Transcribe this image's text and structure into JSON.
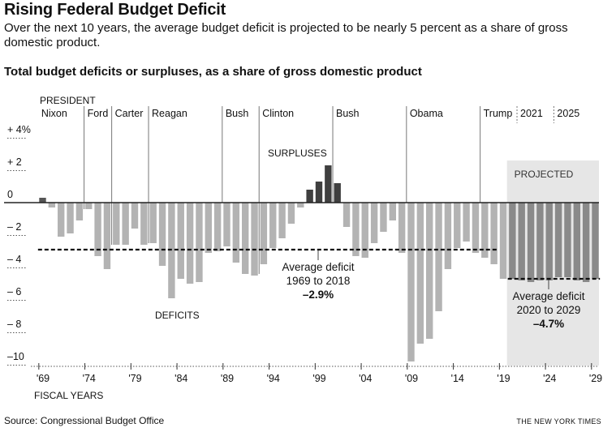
{
  "header": {
    "title": "Rising Federal Budget Deficit",
    "subtitle": "Over the next 10 years, the average budget deficit is projected to be nearly 5 percent as a share of gross domestic product."
  },
  "chart_title": "Total budget deficits or surpluses, as a share of gross domestic product",
  "footer": {
    "source": "Source: Congressional Budget Office",
    "credit": "THE NEW YORK TIMES"
  },
  "colors": {
    "deficit": "#b3b3b3",
    "surplus": "#3f3f3f",
    "projected_bar": "#8a8a8a",
    "projected_bg": "#e6e6e6",
    "axis": "#222222"
  },
  "chart_data": {
    "type": "bar",
    "title": "Total budget deficits or surpluses, as a share of gross domestic product",
    "xlabel": "FISCAL YEARS",
    "ylabel": "",
    "ylim": [
      -10.5,
      4.5
    ],
    "yticks": [
      {
        "value": 4,
        "label": "+ 4%"
      },
      {
        "value": 2,
        "label": "+ 2"
      },
      {
        "value": 0,
        "label": "0"
      },
      {
        "value": -2,
        "label": "– 2"
      },
      {
        "value": -4,
        "label": "– 4"
      },
      {
        "value": -6,
        "label": "– 6"
      },
      {
        "value": -8,
        "label": "– 8"
      },
      {
        "value": -10,
        "label": "–10"
      }
    ],
    "xticks": [
      {
        "year": 1969,
        "label": "'69"
      },
      {
        "year": 1974,
        "label": "'74"
      },
      {
        "year": 1979,
        "label": "'79"
      },
      {
        "year": 1984,
        "label": "'84"
      },
      {
        "year": 1989,
        "label": "'89"
      },
      {
        "year": 1994,
        "label": "'94"
      },
      {
        "year": 1999,
        "label": "'99"
      },
      {
        "year": 2004,
        "label": "'04"
      },
      {
        "year": 2009,
        "label": "'09"
      },
      {
        "year": 2014,
        "label": "'14"
      },
      {
        "year": 2019,
        "label": "'19"
      },
      {
        "year": 2024,
        "label": "'24"
      },
      {
        "year": 2029,
        "label": "'29"
      }
    ],
    "years": [
      1969,
      1970,
      1971,
      1972,
      1973,
      1974,
      1975,
      1976,
      1977,
      1978,
      1979,
      1980,
      1981,
      1982,
      1983,
      1984,
      1985,
      1986,
      1987,
      1988,
      1989,
      1990,
      1991,
      1992,
      1993,
      1994,
      1995,
      1996,
      1997,
      1998,
      1999,
      2000,
      2001,
      2002,
      2003,
      2004,
      2005,
      2006,
      2007,
      2008,
      2009,
      2010,
      2011,
      2012,
      2013,
      2014,
      2015,
      2016,
      2017,
      2018,
      2019,
      2020,
      2021,
      2022,
      2023,
      2024,
      2025,
      2026,
      2027,
      2028,
      2029
    ],
    "values": [
      0.3,
      -0.3,
      -2.1,
      -1.9,
      -1.1,
      -0.4,
      -3.3,
      -4.1,
      -2.6,
      -2.6,
      -1.6,
      -2.6,
      -2.5,
      -3.9,
      -5.9,
      -4.7,
      -5.0,
      -4.9,
      -3.1,
      -3.0,
      -2.7,
      -3.7,
      -4.4,
      -4.5,
      -3.8,
      -2.8,
      -2.2,
      -1.3,
      -0.3,
      0.8,
      1.3,
      2.3,
      1.2,
      -1.5,
      -3.3,
      -3.4,
      -2.5,
      -1.8,
      -1.1,
      -3.1,
      -9.8,
      -8.7,
      -8.4,
      -6.7,
      -4.1,
      -2.8,
      -2.4,
      -3.1,
      -3.4,
      -3.8,
      -4.7,
      -4.7,
      -4.8,
      -4.9,
      -4.8,
      -4.8,
      -4.6,
      -4.6,
      -4.8,
      -4.9,
      -4.7
    ],
    "projected_from": 2020,
    "presidents": [
      {
        "name": "Nixon",
        "year": 1969
      },
      {
        "name": "Ford",
        "year": 1974
      },
      {
        "name": "Carter",
        "year": 1977
      },
      {
        "name": "Reagan",
        "year": 1981
      },
      {
        "name": "Bush",
        "year": 1989
      },
      {
        "name": "Clinton",
        "year": 1993
      },
      {
        "name": "Bush",
        "year": 2001
      },
      {
        "name": "Obama",
        "year": 2009
      },
      {
        "name": "Trump",
        "year": 2017
      },
      {
        "name": "2021",
        "year": 2021
      },
      {
        "name": "2025",
        "year": 2025
      }
    ],
    "president_heading": "PRESIDENT",
    "projected_label": "PROJECTED",
    "surpluses_label": "SURPLUSES",
    "deficits_label": "DEFICITS",
    "averages": [
      {
        "from": 1969,
        "to": 2018,
        "value": -2.9,
        "line1": "Average deficit",
        "line2": "1969 to 2018",
        "line3": "–2.9%"
      },
      {
        "from": 2020,
        "to": 2029,
        "value": -4.7,
        "line1": "Average deficit",
        "line2": "2020 to 2029",
        "line3": "–4.7%"
      }
    ]
  }
}
